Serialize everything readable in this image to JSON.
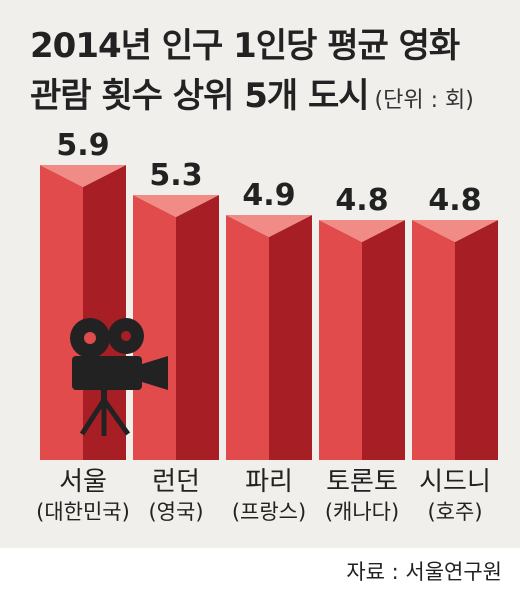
{
  "header": {
    "title_line1": "2014년 인구 1인당 평균 영화",
    "title_line2": "관람 횟수 상위 5개 도시",
    "unit": "(단위 : 회)"
  },
  "chart_data": {
    "type": "bar",
    "title": "2014년 인구 1인당 평균 영화 관람 횟수 상위 5개 도시",
    "unit": "(단위 : 회)",
    "categories": [
      "서울",
      "런던",
      "파리",
      "토론토",
      "시드니"
    ],
    "countries": [
      "(대한민국)",
      "(영국)",
      "(프랑스)",
      "(캐나다)",
      "(호주)"
    ],
    "values": [
      5.9,
      5.3,
      4.9,
      4.8,
      4.8
    ],
    "value_labels": [
      "5.9",
      "5.3",
      "4.9",
      "4.8",
      "4.8"
    ],
    "grid": false,
    "colors": {
      "bar_front": "#e14b4b",
      "bar_side": "#a71f24",
      "bar_top": "#f08b86",
      "background": "#f1efec"
    },
    "icon": "film-camera-icon"
  },
  "footer": {
    "source": "자료 : 서울연구원"
  }
}
